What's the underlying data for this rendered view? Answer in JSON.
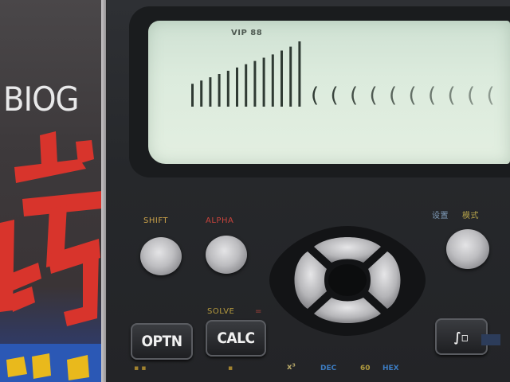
{
  "book": {
    "title": "BIOG",
    "cover_art": "red-chinese-glyph-art"
  },
  "calculator": {
    "lcd": {
      "indicator": "VIP 88",
      "bars": [
        {
          "height": 0.35
        },
        {
          "height": 0.4
        },
        {
          "height": 0.45
        },
        {
          "height": 0.5
        },
        {
          "height": 0.55
        },
        {
          "height": 0.6
        },
        {
          "height": 0.65
        },
        {
          "height": 0.7
        },
        {
          "height": 0.75
        },
        {
          "height": 0.8
        },
        {
          "height": 0.86
        },
        {
          "height": 0.92
        },
        {
          "height": 1.0
        }
      ],
      "arrow_marks": [
        "(",
        "(",
        "(",
        "(",
        "(",
        "(",
        "(",
        "(",
        "(",
        "("
      ],
      "background_color": "#dcebdd",
      "segment_color": "#2f3a33"
    },
    "keys": {
      "shift_label": "SHIFT",
      "alpha_label": "ALPHA",
      "mode_label_a": "设置",
      "mode_label_b": "模式",
      "solve_label": "SOLVE",
      "solve_eq": "=",
      "optn_label": "OPTN",
      "calc_label": "CALC",
      "integral_label": "∫▫",
      "dec_label": "DEC",
      "hex_label": "HEX",
      "sixty_label": "60",
      "x3_label": "x³"
    },
    "dpad_icon": "four-way-cursor-icon",
    "accent_colors": {
      "shift": "#cba24a",
      "alpha": "#c8443c",
      "dec_hex": "#3c7cc2"
    }
  }
}
